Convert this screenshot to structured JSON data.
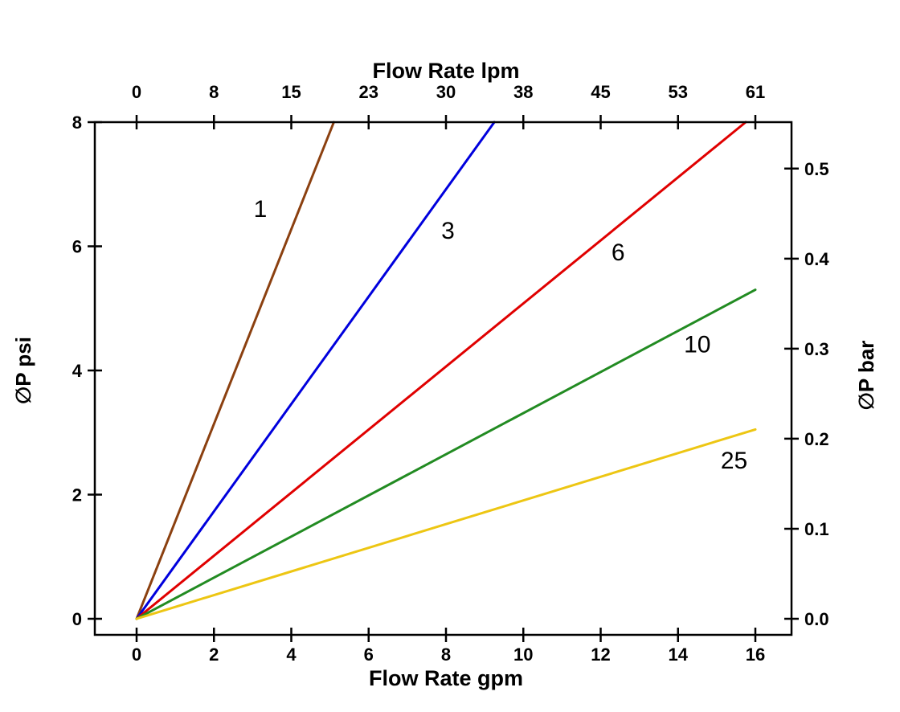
{
  "page": {
    "background": "#ffffff"
  },
  "chart_data": {
    "type": "line",
    "title_top_axis": "Flow Rate lpm",
    "xlabel": "Flow Rate gpm",
    "ylabel_left": "∅P psi",
    "ylabel_right": "∅P bar",
    "x_range": [
      0,
      16
    ],
    "y_range": [
      0,
      8
    ],
    "grid": false,
    "legend": "inline-labels-on-lines",
    "bottom_ticks": [
      0,
      2,
      4,
      6,
      8,
      10,
      12,
      14,
      16
    ],
    "bottom_tick_labels": [
      "0",
      "2",
      "4",
      "6",
      "8",
      "10",
      "12",
      "14",
      "16"
    ],
    "top_tick_labels": [
      "0",
      "8",
      "15",
      "23",
      "30",
      "38",
      "45",
      "53",
      "61"
    ],
    "left_ticks": [
      0,
      2,
      4,
      6,
      8
    ],
    "left_tick_labels": [
      "0",
      "2",
      "4",
      "6",
      "8"
    ],
    "right_ticks_bar": [
      0.0,
      0.1,
      0.2,
      0.3,
      0.4,
      0.5
    ],
    "right_tick_labels": [
      "0.0",
      "0.1",
      "0.2",
      "0.3",
      "0.4",
      "0.5"
    ],
    "psi_per_bar": 14.5038,
    "axis_color": "#000000",
    "line_width": 3,
    "series": [
      {
        "name": "1",
        "label": "1",
        "color": "#8b4010",
        "points": [
          [
            0,
            0
          ],
          [
            5.1,
            8
          ]
        ],
        "label_pos": [
          3.2,
          6.6
        ]
      },
      {
        "name": "3",
        "label": "3",
        "color": "#0000dd",
        "points": [
          [
            0,
            0
          ],
          [
            9.25,
            8
          ]
        ],
        "label_pos": [
          8.05,
          6.25
        ]
      },
      {
        "name": "6",
        "label": "6",
        "color": "#e00000",
        "points": [
          [
            0,
            0
          ],
          [
            15.75,
            8
          ]
        ],
        "label_pos": [
          12.45,
          5.9
        ]
      },
      {
        "name": "10",
        "label": "10",
        "color": "#228b22",
        "points": [
          [
            0,
            0
          ],
          [
            16,
            5.3
          ]
        ],
        "label_pos": [
          14.5,
          4.42
        ]
      },
      {
        "name": "25",
        "label": "25",
        "color": "#edc613",
        "points": [
          [
            0,
            0
          ],
          [
            16,
            3.05
          ]
        ],
        "label_pos": [
          15.45,
          2.55
        ]
      }
    ]
  }
}
